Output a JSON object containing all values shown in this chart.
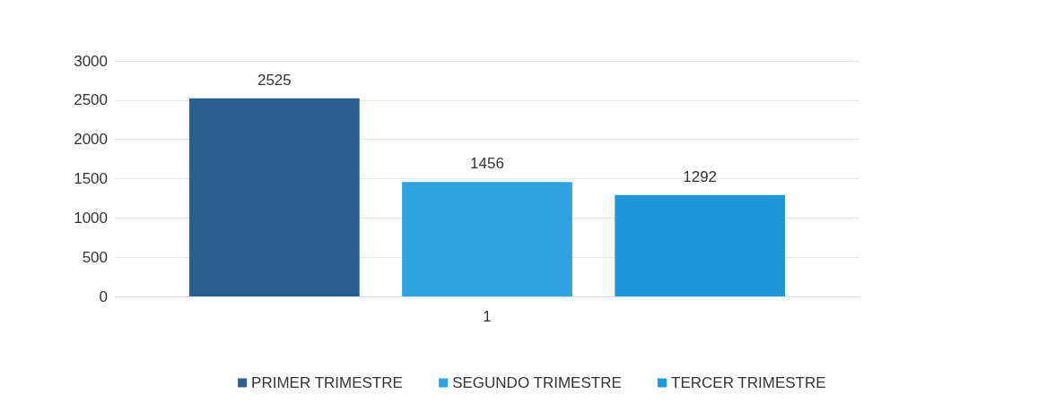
{
  "chart_data": {
    "type": "bar",
    "categories": [
      "1"
    ],
    "series": [
      {
        "name": "PRIMER TRIMESTRE",
        "color": "#2a5f8f",
        "values": [
          2525
        ]
      },
      {
        "name": "SEGUNDO TRIMESTRE",
        "color": "#2ea3e0",
        "values": [
          1456
        ]
      },
      {
        "name": "TERCER TRIMESTRE",
        "color": "#1f97d8",
        "values": [
          1292
        ]
      }
    ],
    "ylim": [
      0,
      3000
    ],
    "yticks": [
      0,
      500,
      1000,
      1500,
      2000,
      2500,
      3000
    ],
    "grid": "y",
    "data_labels": true,
    "legend": "bottom"
  }
}
